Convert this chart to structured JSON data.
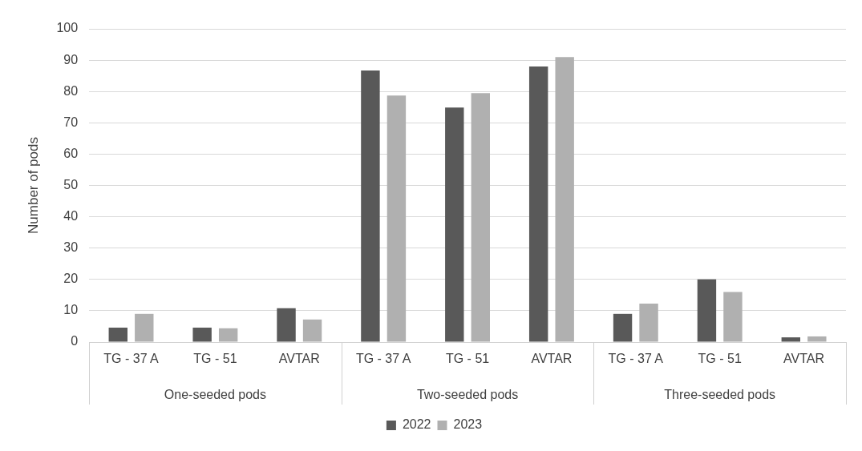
{
  "chart_data": {
    "type": "bar",
    "ylabel": "Number of pods",
    "categories": [
      "TG - 37 A",
      "TG - 51",
      "AVTAR",
      "TG - 37 A",
      "TG - 51",
      "AVTAR",
      "TG - 37 A",
      "TG - 51",
      "AVTAR"
    ],
    "series": [
      {
        "name": "2022",
        "color": "#595959",
        "values": [
          4.6,
          4.6,
          10.8,
          86.7,
          74.9,
          88,
          9,
          20,
          1.5
        ]
      },
      {
        "name": "2023",
        "color": "#b0b0b0",
        "values": [
          9,
          4.4,
          7.2,
          78.7,
          79.5,
          91,
          12.3,
          16,
          1.8
        ]
      }
    ],
    "annotations": [
      "One-seeded pods",
      "Two-seeded pods",
      "Three-seeded pods"
    ],
    "ylim": [
      0,
      100
    ],
    "yticks": [
      0,
      10,
      20,
      30,
      40,
      50,
      60,
      70,
      80,
      90,
      100
    ],
    "grid": "y",
    "legend": "bottom"
  }
}
